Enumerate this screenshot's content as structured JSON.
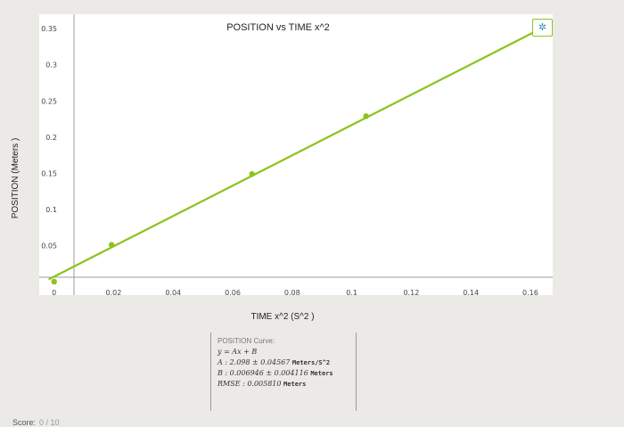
{
  "chart_data": {
    "type": "scatter",
    "title": "POSITION vs TIME x^2",
    "xlabel": "TIME x^2 (S^2 )",
    "ylabel": "POSITION (Meters )",
    "xlim": [
      -0.002,
      0.1675
    ],
    "ylim": [
      -0.005,
      0.37
    ],
    "x_ticks": [
      0,
      0.02,
      0.04,
      0.06,
      0.08,
      0.1,
      0.12,
      0.14,
      0.16
    ],
    "x_tick_labels": [
      "0",
      "0.02",
      "0.04",
      "0.06",
      "0.08",
      "0.1",
      "0.12",
      "0.14",
      "0.16"
    ],
    "y_ticks": [
      0,
      0.05,
      0.1,
      0.15,
      0.2,
      0.25,
      0.3,
      0.35
    ],
    "y_tick_labels": [
      "0",
      "0.05",
      "0.1",
      "0.15",
      "0.2",
      "0.25",
      "0.3",
      "0.35"
    ],
    "series": [
      {
        "color": "#8dc21f",
        "points": [
          {
            "x": 0,
            "y": 0
          },
          {
            "x": 0.0193,
            "y": 0.051
          },
          {
            "x": 0.0665,
            "y": 0.149
          },
          {
            "x": 0.1048,
            "y": 0.229
          },
          {
            "x": 0.1616,
            "y": 0.344
          }
        ]
      }
    ],
    "fit": {
      "slope": 2.098,
      "intercept": 0.006946,
      "x_range": [
        -0.0018,
        0.1673
      ]
    },
    "grid": false,
    "legend": false
  },
  "fit_box": {
    "heading": "POSITION Curve:",
    "equation": "y = Ax + B",
    "a_text": "A : 2.098 ± 0.04567",
    "a_unit_num": "Meters",
    "a_unit_den": "S^2",
    "b_text": "B : 0.006946 ± 0.004116",
    "b_unit": "Meters",
    "rmse_text": "RMSE : 0.005810",
    "rmse_unit": "Meters"
  },
  "score": {
    "label": "Score:",
    "value": "0 / 10"
  },
  "settings": {
    "icon": "gear-icon",
    "glyph": "✲"
  }
}
